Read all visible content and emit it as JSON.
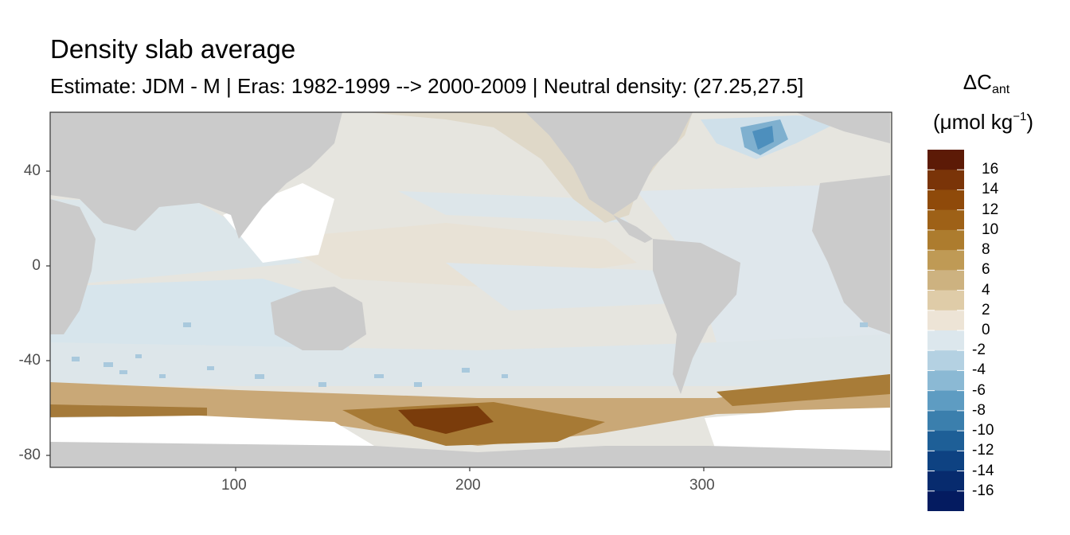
{
  "title": "Density slab average",
  "subtitle": "Estimate: JDM - M | Eras: 1982-1999 --> 2000-2009 | Neutral density: (27.25,27.5]",
  "legend": {
    "title_prefix": "ΔC",
    "title_sub": "ant",
    "unit_prefix": "(μmol kg",
    "unit_sup": "−1",
    "unit_suffix": ")",
    "labels": [
      "16",
      "14",
      "12",
      "10",
      "8",
      "6",
      "4",
      "2",
      "0",
      "-2",
      "-4",
      "-6",
      "-8",
      "-10",
      "-12",
      "-14",
      "-16"
    ],
    "colors": [
      "#5c1a06",
      "#7a3408",
      "#8f4a0a",
      "#9e6117",
      "#ad7c2e",
      "#bf9a55",
      "#cdb280",
      "#dfcca8",
      "#ede4d6",
      "#dce7ed",
      "#b4d1e2",
      "#8bb9d4",
      "#5e9cc2",
      "#3b7fad",
      "#1e5f97",
      "#0e4282",
      "#072b6e",
      "#041b60"
    ]
  },
  "axes": {
    "x_ticks": [
      "100",
      "200",
      "300"
    ],
    "y_ticks": [
      "40",
      "0",
      "-40",
      "-80"
    ]
  },
  "colors": {
    "land": "#cbcbcb",
    "ocean_missing": "#ffffff",
    "panel_border": "#333333"
  }
}
